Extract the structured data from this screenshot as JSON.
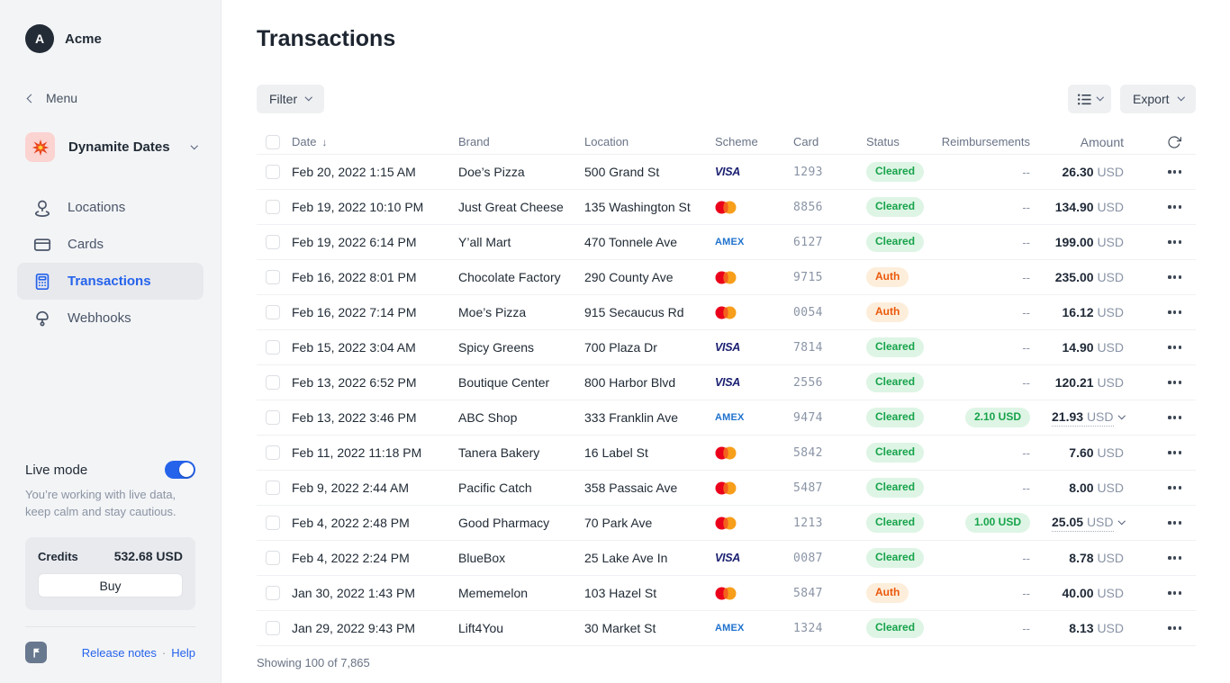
{
  "colors": {
    "accent": "#2563eb",
    "status_green_text": "#17a34a",
    "status_green_bg": "#def5e5",
    "status_orange_text": "#ea580c",
    "status_orange_bg": "#fdeedb",
    "visa_blue": "#1a1f71",
    "amex_blue": "#1f72cd",
    "mastercard_red": "#eb001b",
    "mastercard_orange": "#f79e1b",
    "mastercard_overlap": "#f4611d"
  },
  "sidebar": {
    "org": {
      "initial": "A",
      "name": "Acme"
    },
    "menu_label": "Menu",
    "workspace": {
      "name": "Dynamite Dates"
    },
    "nav": [
      {
        "label": "Locations"
      },
      {
        "label": "Cards"
      },
      {
        "label": "Transactions"
      },
      {
        "label": "Webhooks"
      }
    ],
    "live_mode": {
      "label": "Live mode",
      "enabled": true,
      "description": "You’re working with live data, keep calm and stay cautious."
    },
    "credits": {
      "label": "Credits",
      "value": "532.68 USD",
      "buy_label": "Buy"
    },
    "footer": {
      "release_notes_label": "Release notes",
      "separator": "·",
      "help_label": "Help"
    }
  },
  "main": {
    "title": "Transactions",
    "toolbar": {
      "filter_label": "Filter",
      "export_label": "Export"
    },
    "table": {
      "columns": [
        "Date",
        "Brand",
        "Location",
        "Scheme",
        "Card",
        "Status",
        "Reimbursements",
        "Amount"
      ],
      "sort_column": "Date",
      "sort_direction": "desc",
      "scheme_labels": {
        "visa": "VISA",
        "amex": "AMEX",
        "mastercard": "mastercard"
      },
      "empty_placeholder": "--",
      "rows": [
        {
          "date": "Feb 20, 2022 1:15 AM",
          "brand": "Doe’s Pizza",
          "location": "500 Grand St",
          "scheme": "visa",
          "card": "1293",
          "status": "Cleared",
          "reimbursement": null,
          "amount": "26.30",
          "currency": "USD",
          "expandable": false
        },
        {
          "date": "Feb 19, 2022 10:10 PM",
          "brand": "Just Great Cheese",
          "location": "135 Washington St",
          "scheme": "mastercard",
          "card": "8856",
          "status": "Cleared",
          "reimbursement": null,
          "amount": "134.90",
          "currency": "USD",
          "expandable": false
        },
        {
          "date": "Feb 19, 2022 6:14 PM",
          "brand": "Y’all Mart",
          "location": "470 Tonnele Ave",
          "scheme": "amex",
          "card": "6127",
          "status": "Cleared",
          "reimbursement": null,
          "amount": "199.00",
          "currency": "USD",
          "expandable": false
        },
        {
          "date": "Feb 16, 2022 8:01 PM",
          "brand": "Chocolate Factory",
          "location": "290 County Ave",
          "scheme": "mastercard",
          "card": "9715",
          "status": "Auth",
          "reimbursement": null,
          "amount": "235.00",
          "currency": "USD",
          "expandable": false
        },
        {
          "date": "Feb 16, 2022 7:14 PM",
          "brand": "Moe’s Pizza",
          "location": "915 Secaucus Rd",
          "scheme": "mastercard",
          "card": "0054",
          "status": "Auth",
          "reimbursement": null,
          "amount": "16.12",
          "currency": "USD",
          "expandable": false
        },
        {
          "date": "Feb 15, 2022 3:04 AM",
          "brand": "Spicy Greens",
          "location": "700 Plaza Dr",
          "scheme": "visa",
          "card": "7814",
          "status": "Cleared",
          "reimbursement": null,
          "amount": "14.90",
          "currency": "USD",
          "expandable": false
        },
        {
          "date": "Feb 13, 2022 6:52 PM",
          "brand": "Boutique Center",
          "location": "800 Harbor Blvd",
          "scheme": "visa",
          "card": "2556",
          "status": "Cleared",
          "reimbursement": null,
          "amount": "120.21",
          "currency": "USD",
          "expandable": false
        },
        {
          "date": "Feb 13, 2022 3:46 PM",
          "brand": "ABC Shop",
          "location": "333 Franklin Ave",
          "scheme": "amex",
          "card": "9474",
          "status": "Cleared",
          "reimbursement": "2.10 USD",
          "amount": "21.93",
          "currency": "USD",
          "expandable": true
        },
        {
          "date": "Feb 11, 2022 11:18 PM",
          "brand": "Tanera Bakery",
          "location": "16 Label St",
          "scheme": "mastercard",
          "card": "5842",
          "status": "Cleared",
          "reimbursement": null,
          "amount": "7.60",
          "currency": "USD",
          "expandable": false
        },
        {
          "date": "Feb 9, 2022 2:44 AM",
          "brand": "Pacific Catch",
          "location": "358 Passaic Ave",
          "scheme": "mastercard",
          "card": "5487",
          "status": "Cleared",
          "reimbursement": null,
          "amount": "8.00",
          "currency": "USD",
          "expandable": false
        },
        {
          "date": "Feb 4, 2022 2:48 PM",
          "brand": "Good Pharmacy",
          "location": "70 Park Ave",
          "scheme": "mastercard",
          "card": "1213",
          "status": "Cleared",
          "reimbursement": "1.00 USD",
          "amount": "25.05",
          "currency": "USD",
          "expandable": true
        },
        {
          "date": "Feb 4, 2022 2:24 PM",
          "brand": "BlueBox",
          "location": "25 Lake Ave In",
          "scheme": "visa",
          "card": "0087",
          "status": "Cleared",
          "reimbursement": null,
          "amount": "8.78",
          "currency": "USD",
          "expandable": false
        },
        {
          "date": "Jan 30, 2022 1:43 PM",
          "brand": "Mememelon",
          "location": "103 Hazel St",
          "scheme": "mastercard",
          "card": "5847",
          "status": "Auth",
          "reimbursement": null,
          "amount": "40.00",
          "currency": "USD",
          "expandable": false
        },
        {
          "date": "Jan 29, 2022 9:43 PM",
          "brand": "Lift4You",
          "location": "30 Market St",
          "scheme": "amex",
          "card": "1324",
          "status": "Cleared",
          "reimbursement": null,
          "amount": "8.13",
          "currency": "USD",
          "expandable": false
        }
      ],
      "footer": "Showing 100 of 7,865"
    }
  }
}
